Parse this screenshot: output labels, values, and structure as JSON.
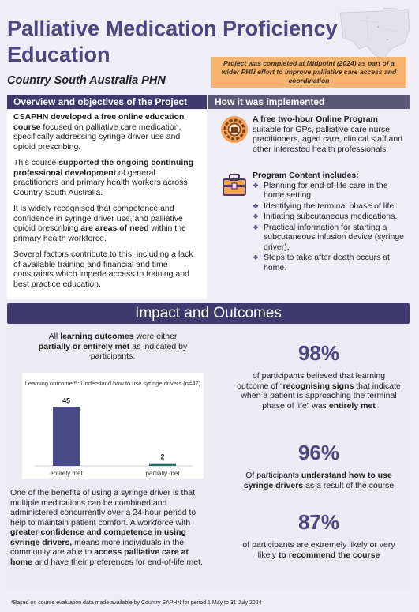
{
  "header": {
    "title": "Palliative Medication Proficiency Education",
    "subtitle": "Country South Australia PHN",
    "note": "Project was completed at Midpoint (2024) as part of a wider PHN effort to improve palliative care access and coordination"
  },
  "overview": {
    "heading": "Overview and objectives of the Project",
    "p1_bold": "CSAPHN developed a free online education course",
    "p1_rest": " focused on palliative care medication, specifically addressing syringe driver use and opioid prescribing.",
    "p2_start": "This course ",
    "p2_bold": "supported the ongoing continuing professional development",
    "p2_rest": " of general practitioners and primary health workers across Country South Australia.",
    "p3_start": "It is widely recognised that competence and confidence in syringe driver use, and palliative opioid prescribing ",
    "p3_bold": "are areas of need",
    "p3_rest": " within the primary health workforce.",
    "p4": "Several factors contribute to this, including a lack of available training and financial and time constraints which impede access to training and best practice education."
  },
  "implementation": {
    "heading": "How it was implemented",
    "program_bold": "A free two-hour Online Program",
    "program_rest": " suitable for GPs, palliative care nurse practitioners, aged care, clinical staff and other interested health professionals.",
    "content_heading": "Program Content includes:",
    "content_items": [
      "Planning for end-of-life care in the home setting.",
      "Identifying the terminal phase of life.",
      "Initiating subcutaneous medications.",
      "Practical information for starting a subcutaneous infusion device (syringe driver).",
      "Steps to take after death occurs at home."
    ]
  },
  "impact": {
    "heading": "Impact and Outcomes",
    "lo_start": "All ",
    "lo_bold1": "learning outcomes",
    "lo_mid": " were either ",
    "lo_bold2": "partially or entirely met",
    "lo_end": " as indicated by participants.",
    "bottom_1": "One of the benefits of using a syringe driver is that multiple medications can be combined and administered concurrently over a 24-hour period to help to maintain patient comfort. A workforce with ",
    "bottom_bold1": "greater confidence and competence in using syringe drivers,",
    "bottom_2": " means more individuals in the community are able to ",
    "bottom_bold2": "access palliative care at home",
    "bottom_3": " and have their preferences for end-of-life met.",
    "stats": [
      {
        "value": "98%",
        "desc_1": "of participants believed that learning outcome of “",
        "desc_bold1": "recognising signs",
        "desc_2": " that indicate when a patient is approaching the terminal phase of life” was ",
        "desc_bold2": "entirely met",
        "desc_3": ""
      },
      {
        "value": "96%",
        "desc_1": "Of participants ",
        "desc_bold1": "understand how to use syringe drivers",
        "desc_2": " as a result of the course",
        "desc_bold2": "",
        "desc_3": ""
      },
      {
        "value": "87%",
        "desc_1": "of participants are extremely likely or very likely ",
        "desc_bold1": "to recommend the course",
        "desc_2": "",
        "desc_bold2": "",
        "desc_3": ""
      }
    ]
  },
  "chart_data": {
    "type": "bar",
    "title": "Learning outcome 5: Understand how to use syringe drivers (n=47)",
    "categories": [
      "entirely met",
      "partially met"
    ],
    "values": [
      45,
      2
    ],
    "colors": [
      "#474a84",
      "#2f6b6b"
    ],
    "ylim": [
      0,
      47
    ]
  },
  "footnote": "*Based on course evaluation data made available by Country SAPHN for period 1 May to 31 July 2024",
  "icons": {
    "program": "online-program-gear-icon",
    "content": "program-content-toolbox-icon",
    "map": "south-australia-map-icon"
  },
  "colors": {
    "brand_purple": "#3f3a6e",
    "title_purple": "#4d4781",
    "note_orange": "#f6b36e"
  }
}
